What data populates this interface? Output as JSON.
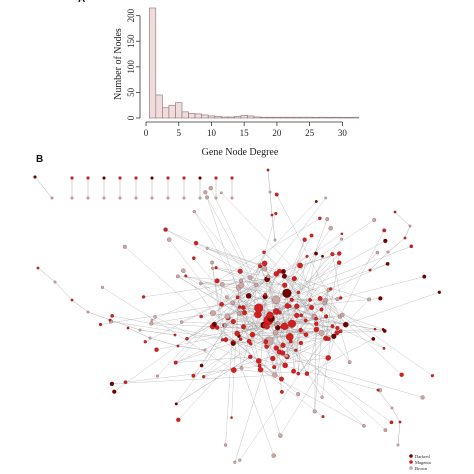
{
  "panels": {
    "a_label": "A",
    "b_label": "B"
  },
  "chart_data": [
    {
      "type": "bar",
      "panel": "A",
      "title": "",
      "xlabel": "Gene Node Degree",
      "ylabel": "Number of Nodes",
      "x": [
        1,
        2,
        3,
        4,
        5,
        6,
        7,
        8,
        9,
        10,
        11,
        12,
        13,
        14,
        15,
        16,
        17,
        18,
        19,
        20,
        21,
        22,
        23,
        24,
        25,
        26,
        27,
        28,
        29,
        30,
        31,
        32
      ],
      "values": [
        215,
        45,
        20,
        25,
        30,
        12,
        9,
        8,
        6,
        4,
        3,
        2,
        2,
        3,
        5,
        4,
        2,
        1,
        1,
        1,
        1,
        1,
        1,
        1,
        1,
        0,
        1,
        0,
        1,
        0,
        0,
        1
      ],
      "xlim": [
        0,
        33
      ],
      "ylim": [
        0,
        215
      ],
      "xticks": [
        0,
        5,
        10,
        15,
        20,
        25,
        30
      ],
      "yticks": [
        0,
        50,
        100,
        150,
        200
      ],
      "bar_color": "#f0dcdc",
      "bar_edge": "#8a7070",
      "grid": false
    },
    {
      "type": "network",
      "panel": "B",
      "legend": {
        "position": "bottom-right",
        "entries": [
          {
            "label": "Darkred",
            "color": "#6e0000"
          },
          {
            "label": "Magenta",
            "color": "#d41f1f"
          },
          {
            "label": "Brown",
            "color": "#c9a8a8"
          }
        ]
      },
      "module_colors": {
        "darkred": "#6e0000",
        "magenta": "#d41f1f",
        "brown": "#c9a8a8"
      },
      "edge_color": "#9a9a9a"
    }
  ]
}
